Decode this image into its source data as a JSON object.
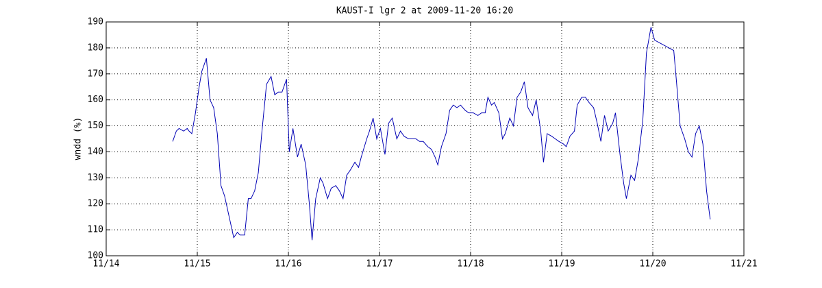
{
  "chart_data": {
    "type": "line",
    "title": "KAUST-I lgr 2 at 2009-11-20 16:20",
    "y_label": "wndd (%)",
    "x": [
      14.73,
      14.77,
      14.8,
      14.85,
      14.89,
      14.91,
      14.94,
      14.98,
      15.02,
      15.05,
      15.1,
      15.14,
      15.18,
      15.22,
      15.26,
      15.3,
      15.35,
      15.4,
      15.44,
      15.47,
      15.52,
      15.56,
      15.59,
      15.63,
      15.67,
      15.71,
      15.76,
      15.81,
      15.85,
      15.89,
      15.93,
      15.98,
      16.01,
      16.05,
      16.1,
      16.14,
      16.19,
      16.23,
      16.26,
      16.3,
      16.35,
      16.38,
      16.43,
      16.47,
      16.52,
      16.56,
      16.6,
      16.64,
      16.68,
      16.73,
      16.77,
      16.8,
      16.86,
      16.89,
      16.93,
      16.97,
      17.01,
      17.06,
      17.1,
      17.14,
      17.19,
      17.23,
      17.27,
      17.32,
      17.36,
      17.4,
      17.44,
      17.48,
      17.53,
      17.57,
      17.61,
      17.64,
      17.68,
      17.73,
      17.77,
      17.81,
      17.85,
      17.89,
      17.94,
      17.98,
      18.03,
      18.08,
      18.12,
      18.16,
      18.19,
      18.23,
      18.26,
      18.31,
      18.35,
      18.38,
      18.43,
      18.47,
      18.51,
      18.55,
      18.59,
      18.63,
      18.68,
      18.72,
      18.77,
      18.8,
      18.84,
      18.89,
      18.93,
      18.97,
      19.02,
      19.05,
      19.09,
      19.14,
      19.17,
      19.22,
      19.26,
      19.3,
      19.35,
      19.39,
      19.43,
      19.47,
      19.51,
      19.56,
      19.59,
      19.64,
      19.68,
      19.71,
      19.76,
      19.8,
      19.84,
      19.89,
      19.93,
      19.98,
      20.02,
      20.23,
      20.26,
      20.3,
      20.35,
      20.39,
      20.43,
      20.47,
      20.51,
      20.55,
      20.59,
      20.63
    ],
    "values": [
      144,
      148,
      149,
      148,
      149,
      148,
      147,
      155,
      165,
      171,
      176,
      160,
      157,
      147,
      127,
      123,
      115,
      107,
      109,
      108,
      108,
      122,
      122,
      125,
      132,
      148,
      166,
      169,
      162,
      163,
      163,
      168,
      140,
      149,
      138,
      143,
      135,
      120,
      106,
      122,
      130,
      128,
      122,
      126,
      127,
      125,
      122,
      131,
      133,
      136,
      134,
      138,
      145,
      148,
      153,
      145,
      149,
      139,
      151,
      153,
      145,
      148,
      146,
      145,
      145,
      145,
      144,
      144,
      142,
      141,
      138,
      135,
      142,
      147,
      156,
      158,
      157,
      158,
      156,
      155,
      155,
      154,
      155,
      155,
      161,
      158,
      159,
      155,
      145,
      147,
      153,
      150,
      161,
      163,
      167,
      157,
      154,
      160,
      148,
      136,
      147,
      146,
      145,
      144,
      143,
      142,
      146,
      148,
      158,
      161,
      161,
      159,
      157,
      151,
      144,
      154,
      148,
      151,
      155,
      139,
      128,
      122,
      131,
      129,
      137,
      152,
      178,
      188,
      183,
      179,
      167,
      150,
      145,
      140,
      138,
      147,
      150,
      143,
      125,
      114
    ],
    "color": "#0000b4",
    "xlim": [
      14,
      21
    ],
    "xticks": [
      {
        "value": 14,
        "label": "11/14"
      },
      {
        "value": 15,
        "label": "11/15"
      },
      {
        "value": 16,
        "label": "11/16"
      },
      {
        "value": 17,
        "label": "11/17"
      },
      {
        "value": 18,
        "label": "11/18"
      },
      {
        "value": 19,
        "label": "11/19"
      },
      {
        "value": 20,
        "label": "11/20"
      },
      {
        "value": 21,
        "label": "11/21"
      }
    ],
    "ylim": [
      100,
      190
    ],
    "yticks": [
      100,
      110,
      120,
      130,
      140,
      150,
      160,
      170,
      180,
      190
    ],
    "grid": true
  }
}
